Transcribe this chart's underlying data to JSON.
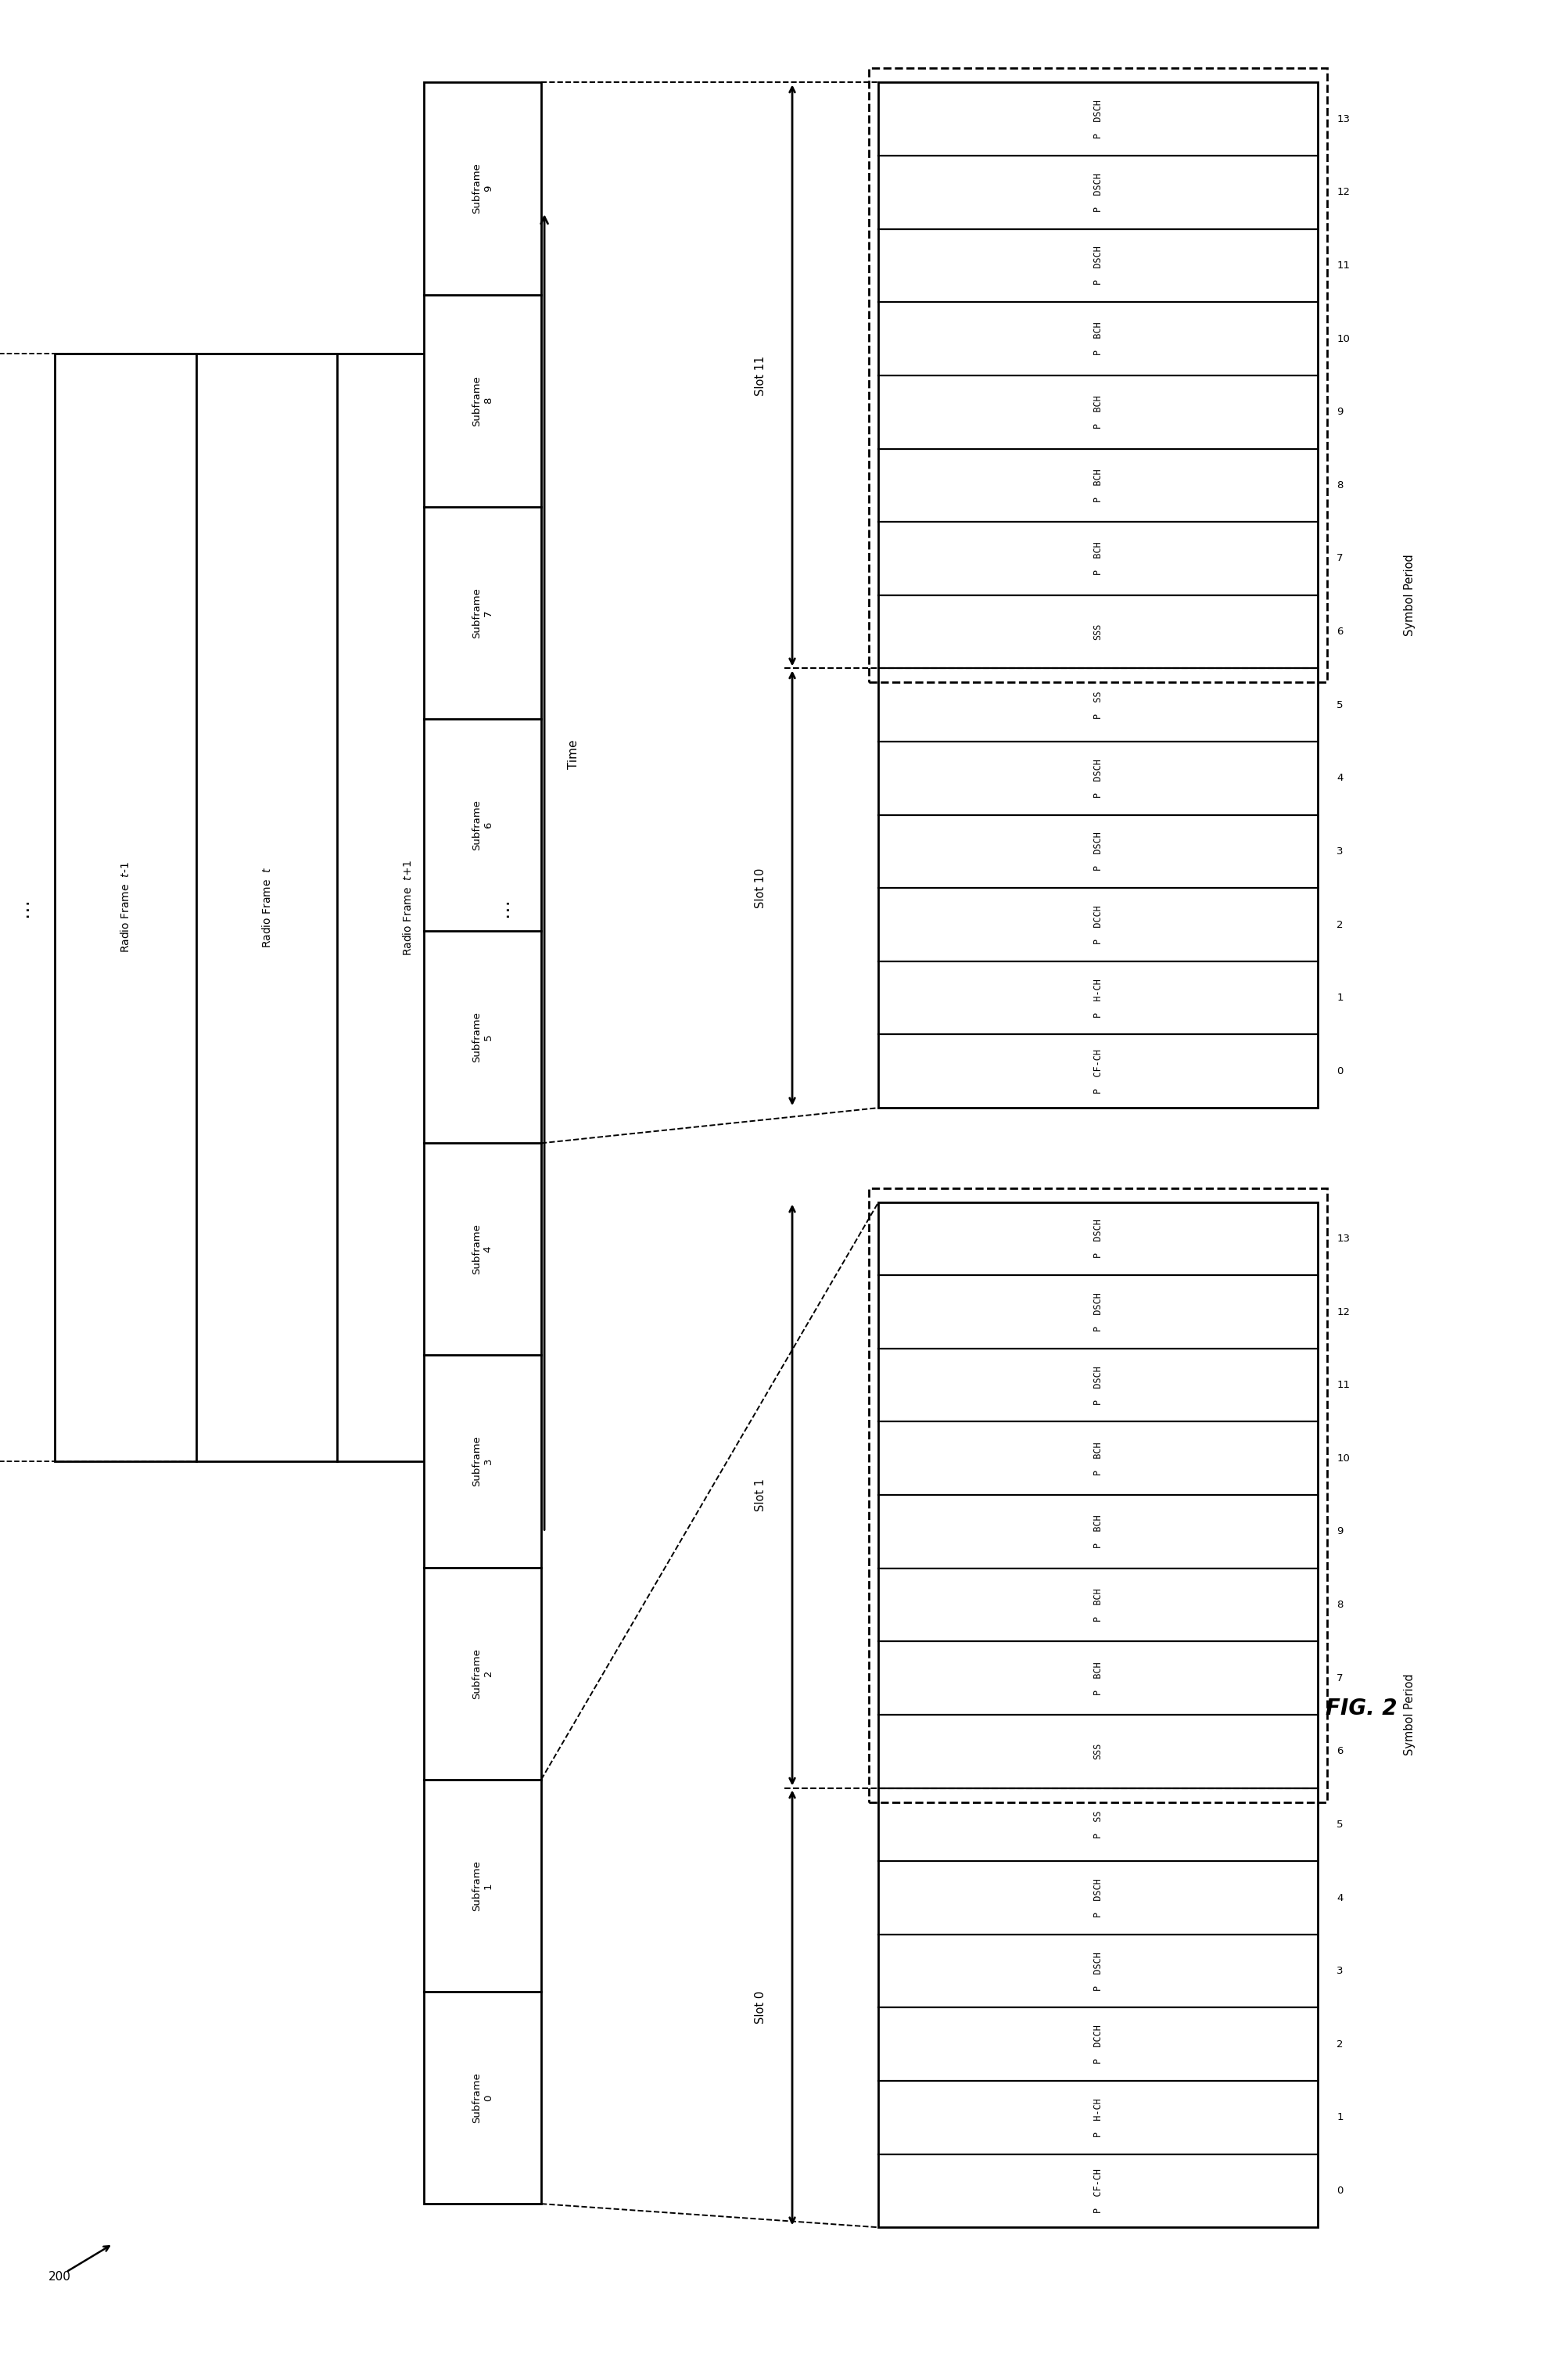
{
  "fig_width": 20.06,
  "fig_height": 30.13,
  "bg_color": "#ffffff",
  "lw": 2.0,
  "fs_subframe": 9.5,
  "fs_rf": 10.0,
  "fs_cell": 8.5,
  "fs_sym_num": 9.5,
  "fs_sym_period": 10.5,
  "fs_slot": 10.5,
  "fs_time": 11.0,
  "fs_fig": 20,
  "fs_ref": 11,
  "fs_dots": 18,
  "fs_one_rf": 9.5,
  "labels_bottom_to_top": [
    "P  CF-CH",
    "P  H-CH",
    "P  DCCH",
    "P  DSCH",
    "P  DSCH",
    "P  SS",
    "SSS",
    "P  BCH",
    "P  BCH",
    "P  BCH",
    "P  BCH",
    "P  DSCH",
    "P  DSCH",
    "P  DSCH"
  ],
  "sym_nums_bottom_to_top": [
    "0",
    "1",
    "2",
    "3",
    "4",
    "5",
    "6",
    "7",
    "8",
    "9",
    "10",
    "11",
    "12",
    "13"
  ]
}
